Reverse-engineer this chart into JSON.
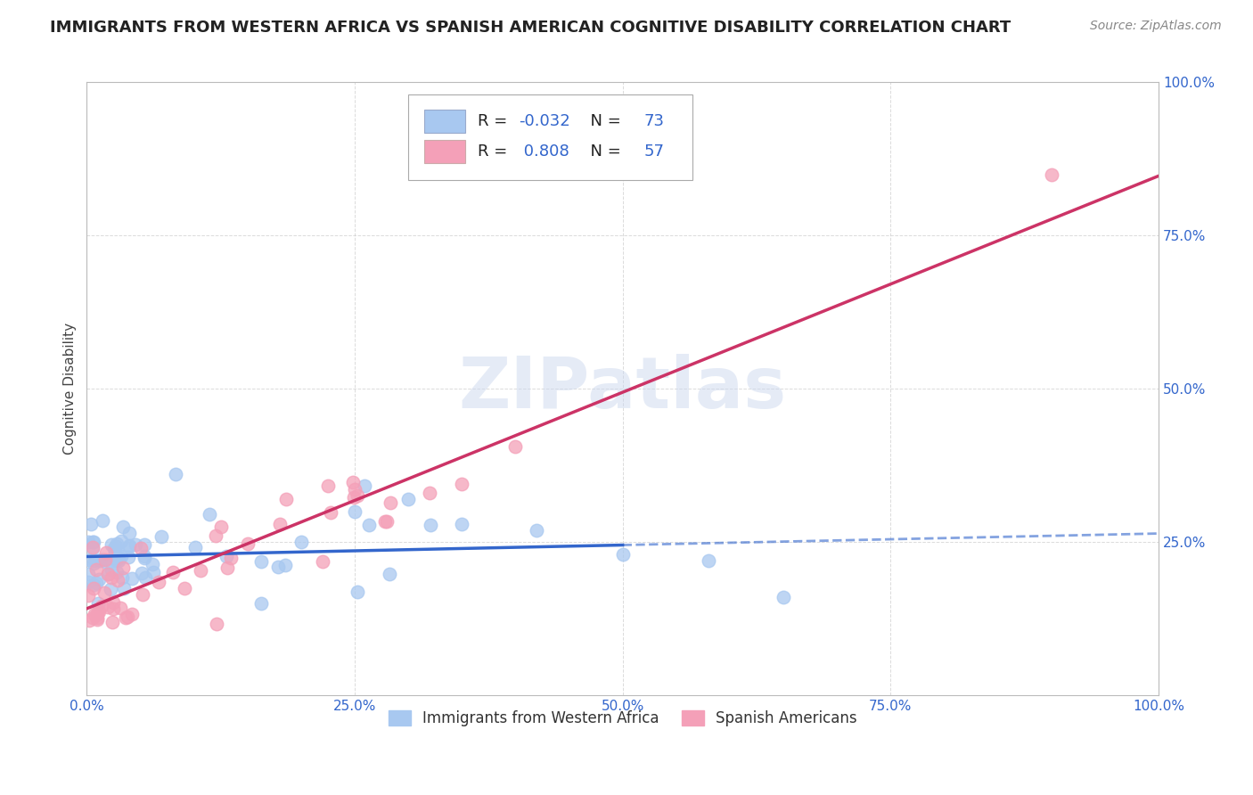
{
  "title": "IMMIGRANTS FROM WESTERN AFRICA VS SPANISH AMERICAN COGNITIVE DISABILITY CORRELATION CHART",
  "source": "Source: ZipAtlas.com",
  "ylabel": "Cognitive Disability",
  "xlabel": "",
  "legend_label_1": "Immigrants from Western Africa",
  "legend_label_2": "Spanish Americans",
  "r1": "-0.032",
  "n1": "73",
  "r2": "0.808",
  "n2": "57",
  "color1": "#a8c8f0",
  "color2": "#f4a0b8",
  "line_color1": "#3366cc",
  "line_color2": "#cc3366",
  "text_color_blue": "#3366cc",
  "watermark_text": "ZIPatlas",
  "bg_color": "#ffffff",
  "plot_bg": "#ffffff",
  "grid_color": "#cccccc",
  "xlim": [
    0.0,
    1.0
  ],
  "ylim": [
    0.0,
    1.0
  ],
  "xtick_labels": [
    "0.0%",
    "25.0%",
    "50.0%",
    "75.0%",
    "100.0%"
  ],
  "xtick_vals": [
    0.0,
    0.25,
    0.5,
    0.75,
    1.0
  ],
  "ytick_labels": [
    "25.0%",
    "50.0%",
    "75.0%",
    "100.0%"
  ],
  "ytick_vals": [
    0.25,
    0.5,
    0.75,
    1.0
  ],
  "title_fontsize": 13,
  "source_fontsize": 10,
  "label_fontsize": 11,
  "tick_fontsize": 11,
  "legend_fontsize": 13
}
